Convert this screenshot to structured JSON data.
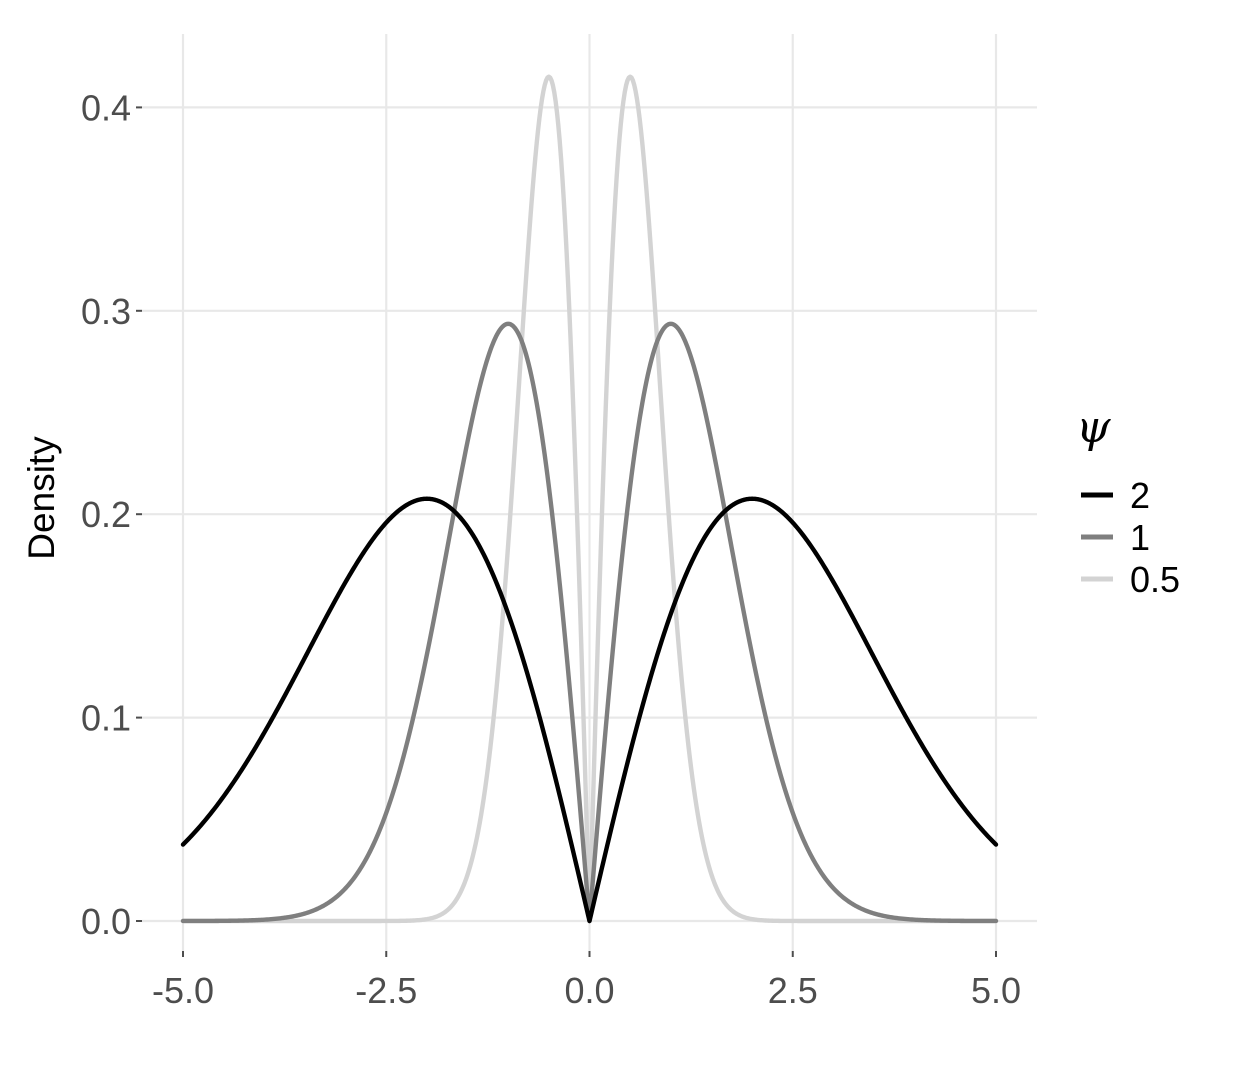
{
  "chart_data": {
    "type": "line",
    "title": "",
    "xlabel": "",
    "ylabel": "Density",
    "xlim": [
      -5.0,
      5.0
    ],
    "ylim": [
      0.0,
      0.42
    ],
    "x_ticks": [
      -5.0,
      -2.5,
      0.0,
      2.5,
      5.0
    ],
    "x_tick_labels": [
      "-5.0",
      "-2.5",
      "0.0",
      "2.5",
      "5.0"
    ],
    "y_ticks": [
      0.0,
      0.1,
      0.2,
      0.3,
      0.4
    ],
    "y_tick_labels": [
      "0.0",
      "0.1",
      "0.2",
      "0.3",
      "0.4"
    ],
    "grid": true,
    "legend": {
      "title": "ψ",
      "placement": "right"
    },
    "series": [
      {
        "name": "2",
        "color": "#000000",
        "peaks": [
          [
            -2.0,
            0.2076
          ],
          [
            2.0,
            0.2076
          ]
        ],
        "points": [
          [
            -5.0,
            0.0064
          ],
          [
            -4.0,
            0.0539
          ],
          [
            -3.0,
            0.1457
          ],
          [
            -2.0,
            0.2076
          ],
          [
            -1.0,
            0.1081
          ],
          [
            0.0,
            0.0
          ],
          [
            1.0,
            0.1081
          ],
          [
            2.0,
            0.2076
          ],
          [
            3.0,
            0.1457
          ],
          [
            4.0,
            0.0539
          ],
          [
            5.0,
            0.0064
          ]
        ]
      },
      {
        "name": "1",
        "color": "#7f7f7f",
        "peaks": [
          [
            -1.414,
            0.2936
          ],
          [
            1.414,
            0.2936
          ]
        ],
        "points": [
          [
            -5.0,
            0.0
          ],
          [
            -4.0,
            0.0021
          ],
          [
            -3.0,
            0.0665
          ],
          [
            -2.0,
            0.2159
          ],
          [
            -1.414,
            0.2936
          ],
          [
            -1.0,
            0.242
          ],
          [
            0.0,
            0.0
          ],
          [
            1.0,
            0.242
          ],
          [
            1.414,
            0.2936
          ],
          [
            2.0,
            0.2159
          ],
          [
            3.0,
            0.0665
          ],
          [
            4.0,
            0.0021
          ],
          [
            5.0,
            0.0
          ]
        ]
      },
      {
        "name": "0.5",
        "color": "#d3d3d3",
        "peaks": [
          [
            -1.0,
            0.4151
          ],
          [
            1.0,
            0.4151
          ]
        ],
        "points": [
          [
            -5.0,
            0.0
          ],
          [
            -3.0,
            0.0003
          ],
          [
            -2.0,
            0.0563
          ],
          [
            -1.5,
            0.2347
          ],
          [
            -1.0,
            0.4151
          ],
          [
            -0.5,
            0.2338
          ],
          [
            0.0,
            0.0
          ],
          [
            0.5,
            0.2338
          ],
          [
            1.0,
            0.4151
          ],
          [
            1.5,
            0.2347
          ],
          [
            2.0,
            0.0563
          ],
          [
            3.0,
            0.0003
          ],
          [
            5.0,
            0.0
          ]
        ]
      }
    ]
  }
}
